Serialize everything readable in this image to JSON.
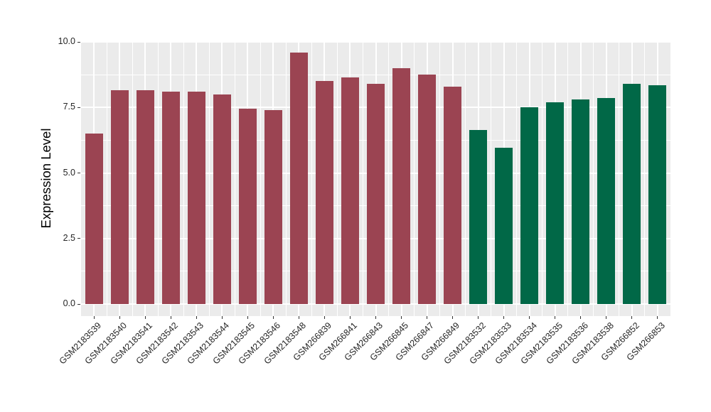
{
  "figure": {
    "background": "#ffffff",
    "panel_background": "#ebebeb",
    "grid_color": "#ffffff",
    "tick_color": "#333333",
    "text_color": "#262626"
  },
  "chart_data": {
    "type": "bar",
    "title": "",
    "xlabel": "",
    "ylabel": "Expression Level",
    "ylim": [
      0,
      10.05
    ],
    "grid": true,
    "legend_position": "none",
    "y_ticks": [
      {
        "value": 0,
        "label": "0.0"
      },
      {
        "value": 2.5,
        "label": "2.5"
      },
      {
        "value": 5,
        "label": "5.0"
      },
      {
        "value": 7.5,
        "label": "7.5"
      },
      {
        "value": 10,
        "label": "10.0"
      }
    ],
    "y_minor_ticks": [
      1.25,
      3.75,
      6.25,
      8.75
    ],
    "categories": [
      "GSM2183539",
      "GSM2183540",
      "GSM2183541",
      "GSM2183542",
      "GSM2183543",
      "GSM2183544",
      "GSM2183545",
      "GSM2183546",
      "GSM2183548",
      "GSM266839",
      "GSM266841",
      "GSM266843",
      "GSM266845",
      "GSM266847",
      "GSM266849",
      "GSM2183532",
      "GSM2183533",
      "GSM2183534",
      "GSM2183535",
      "GSM2183536",
      "GSM2183538",
      "GSM266852",
      "GSM266853"
    ],
    "values": [
      6.5,
      8.15,
      8.15,
      8.1,
      8.1,
      8.0,
      7.45,
      7.4,
      9.6,
      8.5,
      8.65,
      8.4,
      9.0,
      8.75,
      8.3,
      6.65,
      5.95,
      7.5,
      7.7,
      7.8,
      7.85,
      8.4,
      8.35
    ],
    "groups": [
      "maroon",
      "maroon",
      "maroon",
      "maroon",
      "maroon",
      "maroon",
      "maroon",
      "maroon",
      "maroon",
      "maroon",
      "maroon",
      "maroon",
      "maroon",
      "maroon",
      "maroon",
      "green",
      "green",
      "green",
      "green",
      "green",
      "green",
      "green",
      "green"
    ],
    "group_colors": {
      "maroon": "#9b4452",
      "green": "#016847"
    }
  }
}
